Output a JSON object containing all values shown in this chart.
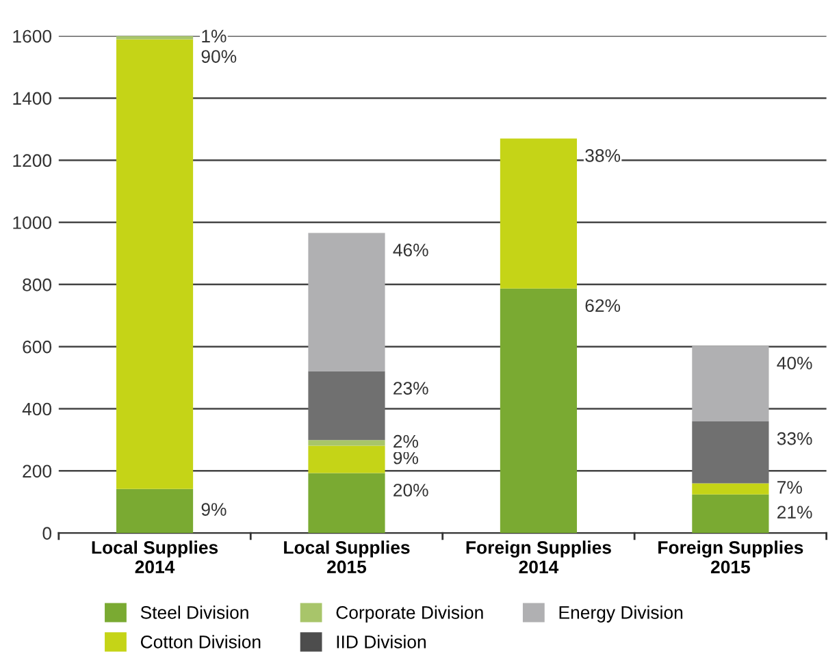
{
  "chart_data": {
    "type": "bar",
    "stacked": true,
    "categories": [
      "Local Supplies\n2014",
      "Local Supplies\n2015",
      "Foreign Supplies\n2014",
      "Foreign Supplies\n2015"
    ],
    "series": [
      {
        "name": "Steel Division",
        "color": "#7aaa32",
        "values": [
          142,
          193,
          787,
          124
        ]
      },
      {
        "name": "Cotton Division",
        "color": "#c5d417",
        "values": [
          1447,
          88,
          483,
          36
        ]
      },
      {
        "name": "Corporate Division",
        "color": "#a8c56a",
        "values": [
          11,
          18,
          null,
          null
        ]
      },
      {
        "name": "IID Division",
        "color": "#4d4d4d",
        "values": [
          null,
          null,
          null,
          null
        ]
      },
      {
        "color": "#707070",
        "values": [
          null,
          222,
          null,
          199
        ]
      },
      {
        "name": "Energy Division",
        "color": "#b0b0b2",
        "values": [
          null,
          445,
          null,
          243
        ]
      }
    ],
    "annotations": [
      {
        "text": "9%",
        "x": "Local Supplies\n2014",
        "y": 142
      },
      {
        "text": "90%",
        "x": "Local Supplies\n2014",
        "y": 1589
      },
      {
        "text": "1%",
        "x": "Local Supplies\n2014",
        "y": 1600
      },
      {
        "text": "20%",
        "x": "Local Supplies\n2015",
        "y": 193
      },
      {
        "text": "9%",
        "x": "Local Supplies\n2015",
        "y": 281
      },
      {
        "text": "2%",
        "x": "Local Supplies\n2015",
        "y": 299
      },
      {
        "text": "23%",
        "x": "Local Supplies\n2015",
        "y": 521
      },
      {
        "text": "46%",
        "x": "Local Supplies\n2015",
        "y": 966
      },
      {
        "text": "62%",
        "x": "Foreign Supplies\n2014",
        "y": 787
      },
      {
        "text": "38%",
        "x": "Foreign Supplies\n2014",
        "y": 1270
      },
      {
        "text": "21%",
        "x": "Foreign Supplies\n2015",
        "y": 124
      },
      {
        "text": "7%",
        "x": "Foreign Supplies\n2015",
        "y": 160
      },
      {
        "text": "33%",
        "x": "Foreign Supplies\n2015",
        "y": 359
      },
      {
        "text": "40%",
        "x": "Foreign Supplies\n2015",
        "y": 602
      }
    ],
    "ylim": [
      0,
      1600
    ],
    "yticks": [
      0,
      200,
      400,
      600,
      800,
      1000,
      1200,
      1400,
      1600
    ],
    "grid": "y",
    "legend": "bottom"
  }
}
